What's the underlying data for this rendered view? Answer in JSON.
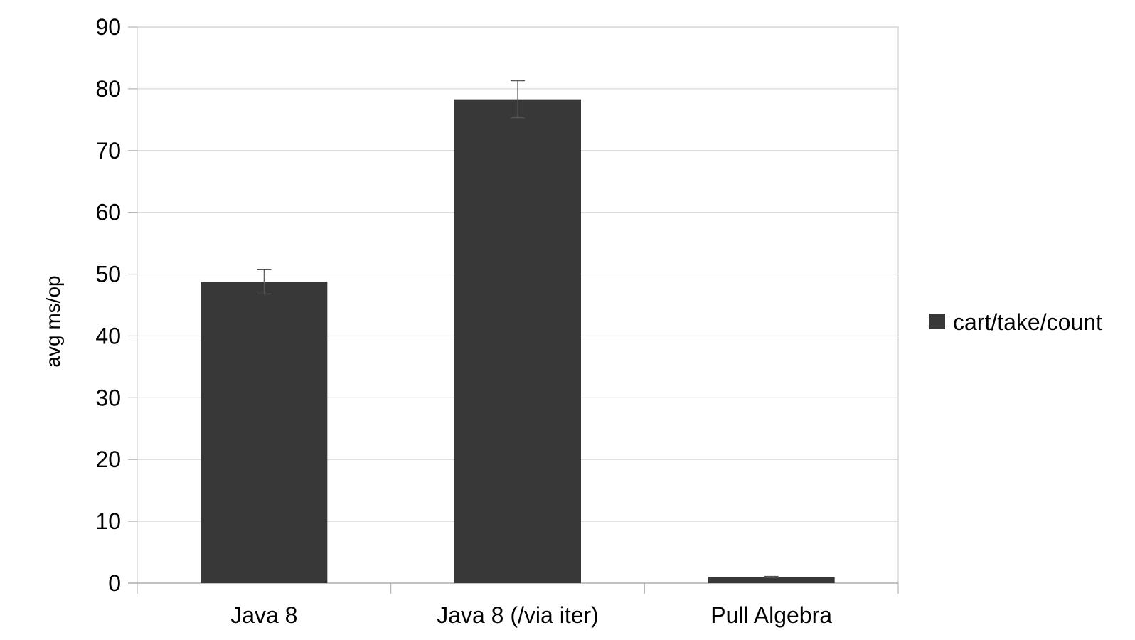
{
  "chart_data": {
    "type": "bar",
    "title": "",
    "xlabel": "",
    "ylabel": "avg ms/op",
    "categories": [
      "Java 8",
      "Java 8 (/via iter)",
      "Pull Algebra"
    ],
    "series": [
      {
        "name": "cart/take/count",
        "values": [
          48.8,
          78.3,
          1.0
        ],
        "error": [
          2.0,
          3.0,
          0.1
        ],
        "color": "#383838"
      }
    ],
    "ylim": [
      0,
      90
    ],
    "yticks": [
      0,
      10,
      20,
      30,
      40,
      50,
      60,
      70,
      80,
      90
    ],
    "grid": true,
    "legend_position": "right"
  }
}
